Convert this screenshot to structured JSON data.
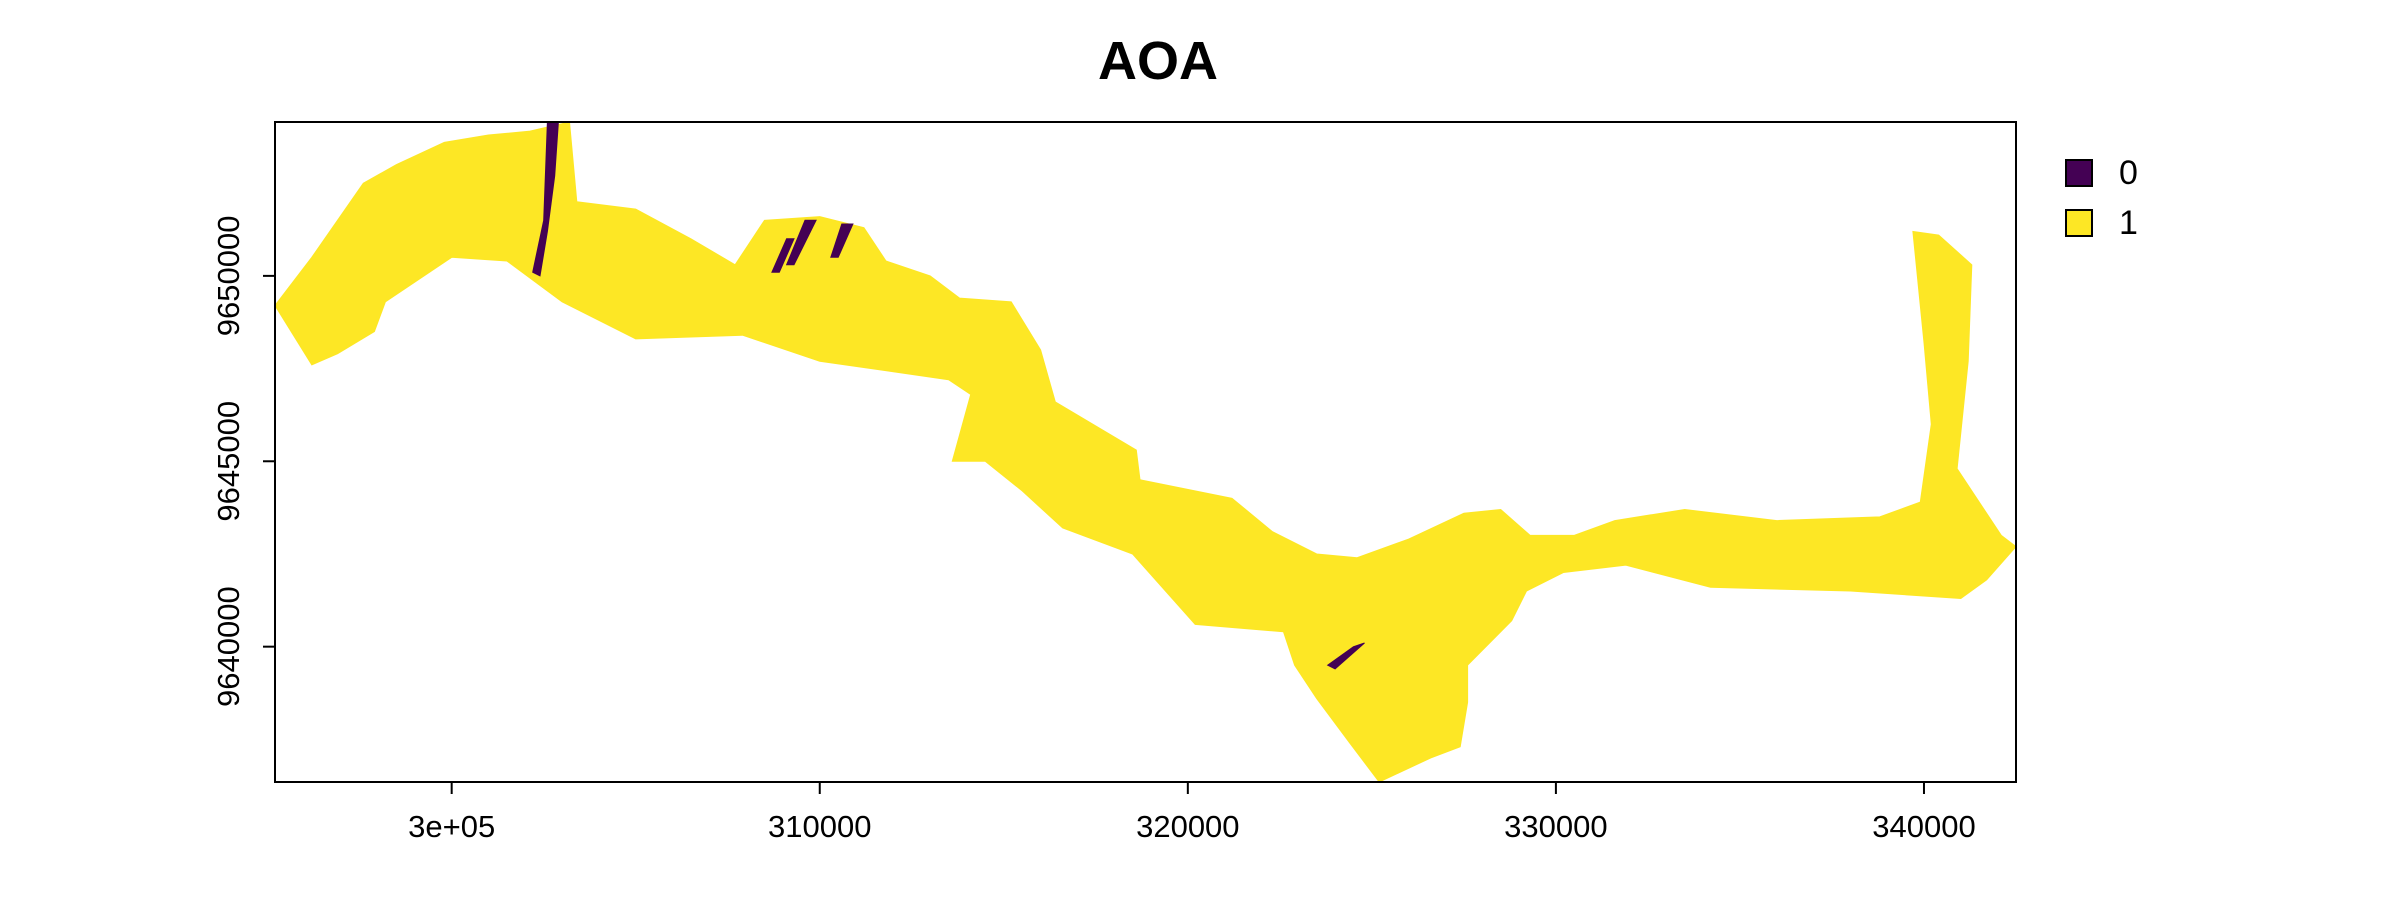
{
  "chart_data": {
    "type": "heatmap",
    "title": "AOA",
    "xlabel": "",
    "ylabel": "",
    "xlim": [
      295200,
      342500
    ],
    "ylim": [
      9636350,
      9654150
    ],
    "x_ticks": [
      {
        "value": 300000,
        "label": "3e+05"
      },
      {
        "value": 310000,
        "label": "310000"
      },
      {
        "value": 320000,
        "label": "320000"
      },
      {
        "value": 330000,
        "label": "330000"
      },
      {
        "value": 340000,
        "label": "340000"
      }
    ],
    "y_ticks": [
      {
        "value": 9640000,
        "label": "9640000"
      },
      {
        "value": 9645000,
        "label": "9645000"
      },
      {
        "value": 9650000,
        "label": "9650000"
      }
    ],
    "legend": {
      "position": "top-right",
      "entries": [
        {
          "label": "0",
          "color": "#440154"
        },
        {
          "label": "1",
          "color": "#FDE725"
        }
      ]
    },
    "region_value_1": [
      [
        295200,
        9649200
      ],
      [
        296200,
        9650500
      ],
      [
        297600,
        9652500
      ],
      [
        298500,
        9653000
      ],
      [
        299800,
        9653600
      ],
      [
        301000,
        9653800
      ],
      [
        302100,
        9653900
      ],
      [
        303200,
        9654150
      ],
      [
        303400,
        9652000
      ],
      [
        305000,
        9651800
      ],
      [
        306500,
        9651000
      ],
      [
        307700,
        9650300
      ],
      [
        308500,
        9651500
      ],
      [
        310000,
        9651600
      ],
      [
        311200,
        9651300
      ],
      [
        311800,
        9650400
      ],
      [
        313000,
        9650000
      ],
      [
        313800,
        9649400
      ],
      [
        315200,
        9649300
      ],
      [
        316000,
        9648000
      ],
      [
        316400,
        9646600
      ],
      [
        318600,
        9645300
      ],
      [
        318700,
        9644500
      ],
      [
        321200,
        9644000
      ],
      [
        322300,
        9643100
      ],
      [
        323500,
        9642500
      ],
      [
        324600,
        9642400
      ],
      [
        326000,
        9642900
      ],
      [
        327500,
        9643600
      ],
      [
        328500,
        9643700
      ],
      [
        329300,
        9643000
      ],
      [
        330500,
        9643000
      ],
      [
        331600,
        9643400
      ],
      [
        333500,
        9643700
      ],
      [
        336000,
        9643400
      ],
      [
        338800,
        9643500
      ],
      [
        339900,
        9643900
      ],
      [
        340200,
        9646000
      ],
      [
        340000,
        9648200
      ],
      [
        339700,
        9651200
      ],
      [
        340400,
        9651100
      ],
      [
        341300,
        9650300
      ],
      [
        341200,
        9647700
      ],
      [
        340900,
        9644800
      ],
      [
        342100,
        9643000
      ],
      [
        342500,
        9642700
      ],
      [
        341700,
        9641800
      ],
      [
        341000,
        9641300
      ],
      [
        338000,
        9641500
      ],
      [
        334200,
        9641600
      ],
      [
        331900,
        9642200
      ],
      [
        330200,
        9642000
      ],
      [
        329200,
        9641500
      ],
      [
        328800,
        9640700
      ],
      [
        327600,
        9639500
      ],
      [
        327600,
        9638500
      ],
      [
        327400,
        9637300
      ],
      [
        326600,
        9637000
      ],
      [
        325200,
        9636350
      ],
      [
        324400,
        9637400
      ],
      [
        323500,
        9638600
      ],
      [
        322900,
        9639500
      ],
      [
        322600,
        9640400
      ],
      [
        320200,
        9640600
      ],
      [
        318500,
        9642500
      ],
      [
        316600,
        9643200
      ],
      [
        315500,
        9644200
      ],
      [
        314500,
        9645000
      ],
      [
        313600,
        9645000
      ],
      [
        314100,
        9646800
      ],
      [
        313500,
        9647200
      ],
      [
        310000,
        9647700
      ],
      [
        307900,
        9648400
      ],
      [
        305000,
        9648300
      ],
      [
        303000,
        9649300
      ],
      [
        301500,
        9650400
      ],
      [
        300000,
        9650500
      ],
      [
        298200,
        9649300
      ],
      [
        297900,
        9648500
      ],
      [
        296900,
        9647900
      ],
      [
        296200,
        9647600
      ]
    ],
    "region_value_0_patches": [
      [
        [
          302600,
          9654150
        ],
        [
          302900,
          9654150
        ],
        [
          302800,
          9652700
        ],
        [
          302600,
          9651200
        ],
        [
          302400,
          9650000
        ],
        [
          302200,
          9650100
        ],
        [
          302500,
          9651500
        ]
      ],
      [
        [
          309100,
          9651000
        ],
        [
          309300,
          9651000
        ],
        [
          308900,
          9650100
        ],
        [
          308700,
          9650100
        ]
      ],
      [
        [
          309600,
          9651500
        ],
        [
          309900,
          9651500
        ],
        [
          309300,
          9650300
        ],
        [
          309100,
          9650300
        ]
      ],
      [
        [
          310600,
          9651400
        ],
        [
          310900,
          9651400
        ],
        [
          310500,
          9650500
        ],
        [
          310300,
          9650500
        ]
      ],
      [
        [
          324500,
          9640000
        ],
        [
          324800,
          9640100
        ],
        [
          324000,
          9639400
        ],
        [
          323800,
          9639500
        ]
      ]
    ]
  }
}
